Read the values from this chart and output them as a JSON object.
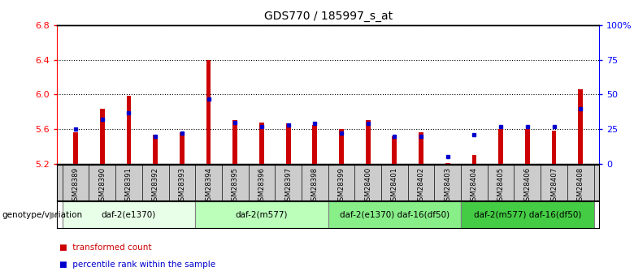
{
  "title": "GDS770 / 185997_s_at",
  "samples": [
    "GSM28389",
    "GSM28390",
    "GSM28391",
    "GSM28392",
    "GSM28393",
    "GSM28394",
    "GSM28395",
    "GSM28396",
    "GSM28397",
    "GSM28398",
    "GSM28399",
    "GSM28400",
    "GSM28401",
    "GSM28402",
    "GSM28403",
    "GSM28404",
    "GSM28405",
    "GSM28406",
    "GSM28407",
    "GSM28408"
  ],
  "transformed_count": [
    5.56,
    5.84,
    5.99,
    5.54,
    5.56,
    6.4,
    5.7,
    5.68,
    5.67,
    5.65,
    5.6,
    5.7,
    5.52,
    5.56,
    5.21,
    5.3,
    5.6,
    5.6,
    5.58,
    6.06
  ],
  "percentile_rank": [
    25,
    32,
    37,
    20,
    22,
    47,
    30,
    27,
    28,
    29,
    22,
    29,
    20,
    20,
    5,
    21,
    27,
    27,
    27,
    40
  ],
  "ylim_left": [
    5.2,
    6.8
  ],
  "ylim_right": [
    0,
    100
  ],
  "yticks_left": [
    5.2,
    5.6,
    6.0,
    6.4,
    6.8
  ],
  "yticks_right": [
    0,
    25,
    50,
    75,
    100
  ],
  "ytick_labels_right": [
    "0",
    "25",
    "50",
    "75",
    "100%"
  ],
  "groups": [
    {
      "label": "daf-2(e1370)",
      "start": 0,
      "end": 5,
      "color": "#e8ffe8"
    },
    {
      "label": "daf-2(m577)",
      "start": 5,
      "end": 10,
      "color": "#bbffbb"
    },
    {
      "label": "daf-2(e1370) daf-16(df50)",
      "start": 10,
      "end": 15,
      "color": "#88ee88"
    },
    {
      "label": "daf-2(m577) daf-16(df50)",
      "start": 15,
      "end": 20,
      "color": "#44cc44"
    }
  ],
  "bar_color": "#cc0000",
  "dot_color": "#0000cc",
  "label_bg_color": "#cccccc",
  "genotype_label": "genotype/variation",
  "legend_items": [
    {
      "label": "transformed count",
      "color": "#cc0000"
    },
    {
      "label": "percentile rank within the sample",
      "color": "#0000cc"
    }
  ]
}
